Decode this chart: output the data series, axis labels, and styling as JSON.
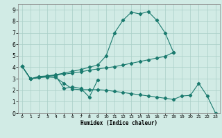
{
  "xlabel": "Humidex (Indice chaleur)",
  "bg_color": "#d1ebe5",
  "grid_color": "#aacfc8",
  "line_color": "#1a7a6e",
  "xlim": [
    -0.5,
    23.5
  ],
  "ylim": [
    0,
    9.5
  ],
  "xticks": [
    0,
    1,
    2,
    3,
    4,
    5,
    6,
    7,
    8,
    9,
    10,
    11,
    12,
    13,
    14,
    15,
    16,
    17,
    18,
    19,
    20,
    21,
    22,
    23
  ],
  "yticks": [
    0,
    1,
    2,
    3,
    4,
    5,
    6,
    7,
    8,
    9
  ],
  "curve1_x": [
    0,
    1,
    2,
    3,
    4,
    5,
    6,
    7,
    8,
    9,
    10,
    11,
    12,
    13,
    14,
    15,
    16,
    17,
    18
  ],
  "curve1_y": [
    4.1,
    3.0,
    3.2,
    3.25,
    3.35,
    3.5,
    3.65,
    3.8,
    4.0,
    4.2,
    5.0,
    7.0,
    8.1,
    8.8,
    8.65,
    8.85,
    8.1,
    7.0,
    5.3
  ],
  "curve2_x": [
    0,
    1,
    2,
    3,
    4,
    5,
    6,
    7,
    8,
    9,
    10,
    11,
    12,
    13,
    14,
    15,
    16,
    17,
    18
  ],
  "curve2_y": [
    4.1,
    3.0,
    3.1,
    3.2,
    3.3,
    3.4,
    3.5,
    3.6,
    3.75,
    3.85,
    3.95,
    4.05,
    4.2,
    4.35,
    4.5,
    4.65,
    4.8,
    4.95,
    5.3
  ],
  "curve3_x": [
    0,
    1,
    3,
    4,
    5,
    6,
    7,
    8,
    9
  ],
  "curve3_y": [
    4.1,
    3.0,
    3.25,
    3.25,
    2.15,
    2.3,
    2.15,
    1.4,
    2.9
  ],
  "curve4_x": [
    0,
    1,
    2,
    3,
    4,
    5,
    6,
    7,
    8,
    9,
    10,
    11,
    12,
    13,
    14,
    15,
    16,
    17,
    18,
    19,
    20,
    21,
    22,
    23
  ],
  "curve4_y": [
    4.1,
    3.0,
    3.1,
    3.15,
    3.1,
    2.6,
    2.1,
    2.05,
    2.05,
    2.05,
    2.0,
    1.9,
    1.8,
    1.7,
    1.6,
    1.5,
    1.4,
    1.3,
    1.2,
    1.5,
    1.55,
    2.6,
    1.5,
    0.0
  ]
}
